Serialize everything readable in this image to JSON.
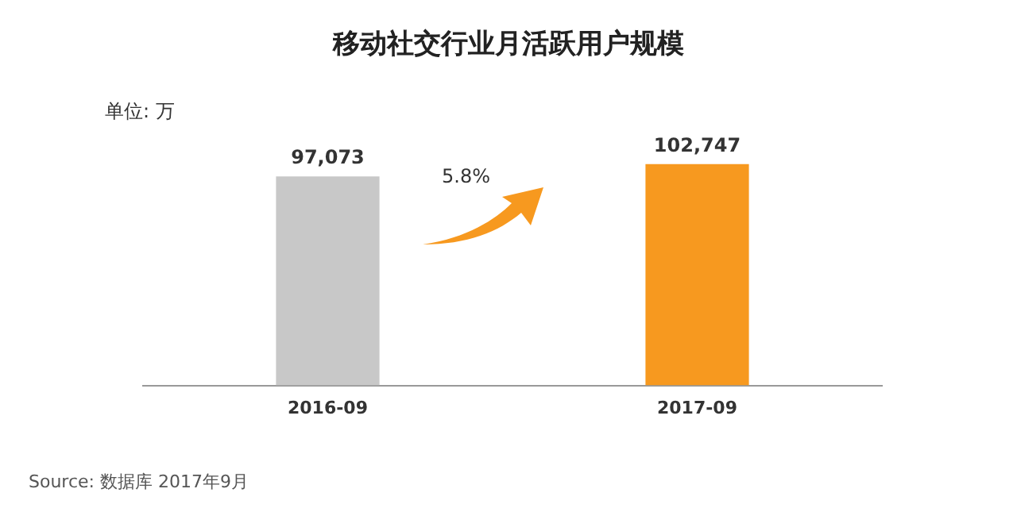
{
  "chart_data": {
    "type": "bar",
    "title": "移动社交行业月活跃用户规模",
    "categories": [
      "2016-09",
      "2017-09"
    ],
    "values": [
      97073,
      102747
    ],
    "colors": [
      "#c8c8c8",
      "#f7991f"
    ],
    "value_labels": [
      "97,073",
      "102,747"
    ],
    "grid": false,
    "legend": false,
    "annotations": [
      "单位: 万",
      "5.8%",
      "Source: 数据库 2017年9月"
    ]
  }
}
